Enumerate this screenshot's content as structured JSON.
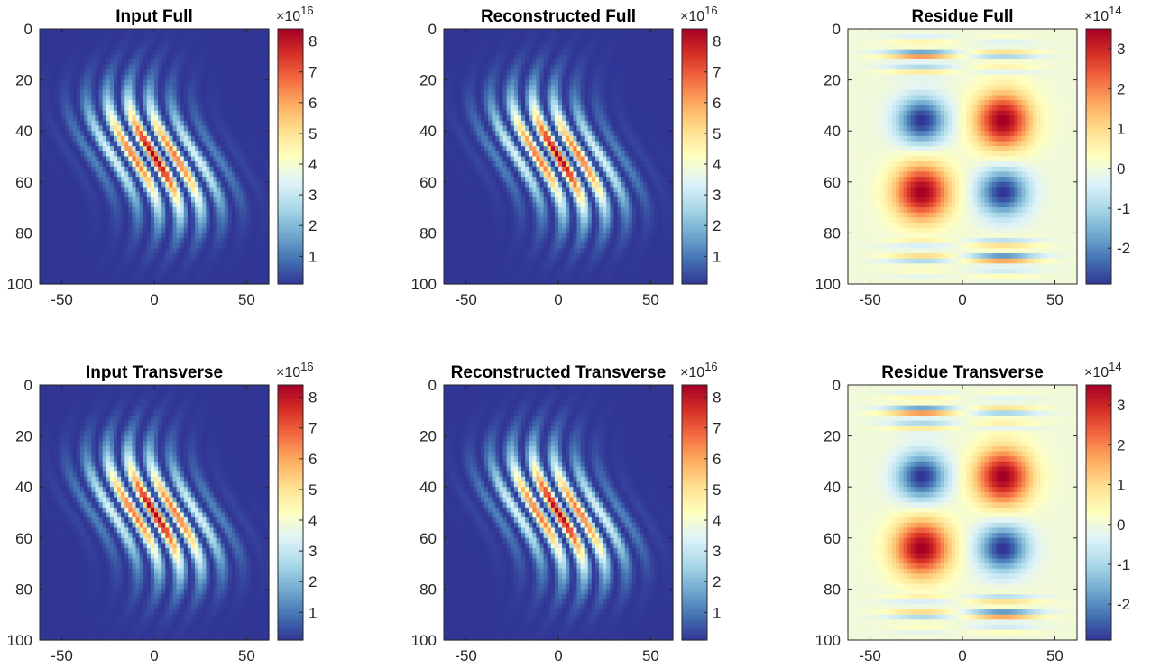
{
  "figure": {
    "background": "#ffffff"
  },
  "colormap": [
    "#313695",
    "#4575b4",
    "#74add1",
    "#abd9e9",
    "#e0f3f8",
    "#ffffbf",
    "#fee090",
    "#fdae61",
    "#f46d43",
    "#d73027",
    "#a50026"
  ],
  "chart_data": [
    {
      "type": "heatmap",
      "title": "Input Full",
      "kind": "wave",
      "xlim": [
        -62,
        62
      ],
      "ylim": [
        0,
        100
      ],
      "y_reversed": true,
      "xticks": [
        "-50",
        "0",
        "50"
      ],
      "xtick_values": [
        -50,
        0,
        50
      ],
      "yticks": [
        "0",
        "20",
        "40",
        "60",
        "80",
        "100"
      ],
      "ytick_values": [
        0,
        20,
        40,
        60,
        80,
        100
      ],
      "clim": [
        0.1,
        8.4
      ],
      "colorbar_ticks": [
        "1",
        "2",
        "3",
        "4",
        "5",
        "6",
        "7",
        "8"
      ],
      "colorbar_tick_values": [
        1,
        2,
        3,
        4,
        5,
        6,
        7,
        8
      ],
      "colorbar_multiplier": "×10",
      "colorbar_exponent": "16"
    },
    {
      "type": "heatmap",
      "title": "Reconstructed Full",
      "kind": "wave",
      "xlim": [
        -62,
        62
      ],
      "ylim": [
        0,
        100
      ],
      "y_reversed": true,
      "xticks": [
        "-50",
        "0",
        "50"
      ],
      "xtick_values": [
        -50,
        0,
        50
      ],
      "yticks": [
        "0",
        "20",
        "40",
        "60",
        "80",
        "100"
      ],
      "ytick_values": [
        0,
        20,
        40,
        60,
        80,
        100
      ],
      "clim": [
        0.1,
        8.4
      ],
      "colorbar_ticks": [
        "1",
        "2",
        "3",
        "4",
        "5",
        "6",
        "7",
        "8"
      ],
      "colorbar_tick_values": [
        1,
        2,
        3,
        4,
        5,
        6,
        7,
        8
      ],
      "colorbar_multiplier": "×10",
      "colorbar_exponent": "16"
    },
    {
      "type": "heatmap",
      "title": "Residue Full",
      "kind": "residue",
      "xlim": [
        -62,
        62
      ],
      "ylim": [
        0,
        100
      ],
      "y_reversed": true,
      "xticks": [
        "-50",
        "0",
        "50"
      ],
      "xtick_values": [
        -50,
        0,
        50
      ],
      "yticks": [
        "0",
        "20",
        "40",
        "60",
        "80",
        "100"
      ],
      "ytick_values": [
        0,
        20,
        40,
        60,
        80,
        100
      ],
      "clim": [
        -2.9,
        3.5
      ],
      "colorbar_ticks": [
        "-2",
        "-1",
        "0",
        "1",
        "2",
        "3"
      ],
      "colorbar_tick_values": [
        -2,
        -1,
        0,
        1,
        2,
        3
      ],
      "colorbar_multiplier": "×10",
      "colorbar_exponent": "14"
    },
    {
      "type": "heatmap",
      "title": "Input Transverse",
      "kind": "wave",
      "xlim": [
        -62,
        62
      ],
      "ylim": [
        0,
        100
      ],
      "y_reversed": true,
      "xticks": [
        "-50",
        "0",
        "50"
      ],
      "xtick_values": [
        -50,
        0,
        50
      ],
      "yticks": [
        "0",
        "20",
        "40",
        "60",
        "80",
        "100"
      ],
      "ytick_values": [
        0,
        20,
        40,
        60,
        80,
        100
      ],
      "clim": [
        0.1,
        8.4
      ],
      "colorbar_ticks": [
        "1",
        "2",
        "3",
        "4",
        "5",
        "6",
        "7",
        "8"
      ],
      "colorbar_tick_values": [
        1,
        2,
        3,
        4,
        5,
        6,
        7,
        8
      ],
      "colorbar_multiplier": "×10",
      "colorbar_exponent": "16"
    },
    {
      "type": "heatmap",
      "title": "Reconstructed Transverse",
      "kind": "wave",
      "xlim": [
        -62,
        62
      ],
      "ylim": [
        0,
        100
      ],
      "y_reversed": true,
      "xticks": [
        "-50",
        "0",
        "50"
      ],
      "xtick_values": [
        -50,
        0,
        50
      ],
      "yticks": [
        "0",
        "20",
        "40",
        "60",
        "80",
        "100"
      ],
      "ytick_values": [
        0,
        20,
        40,
        60,
        80,
        100
      ],
      "clim": [
        0.1,
        8.4
      ],
      "colorbar_ticks": [
        "1",
        "2",
        "3",
        "4",
        "5",
        "6",
        "7",
        "8"
      ],
      "colorbar_tick_values": [
        1,
        2,
        3,
        4,
        5,
        6,
        7,
        8
      ],
      "colorbar_multiplier": "×10",
      "colorbar_exponent": "16"
    },
    {
      "type": "heatmap",
      "title": "Residue Transverse",
      "kind": "residue",
      "xlim": [
        -62,
        62
      ],
      "ylim": [
        0,
        100
      ],
      "y_reversed": true,
      "xticks": [
        "-50",
        "0",
        "50"
      ],
      "xtick_values": [
        -50,
        0,
        50
      ],
      "yticks": [
        "0",
        "20",
        "40",
        "60",
        "80",
        "100"
      ],
      "ytick_values": [
        0,
        20,
        40,
        60,
        80,
        100
      ],
      "clim": [
        -2.9,
        3.5
      ],
      "colorbar_ticks": [
        "-2",
        "-1",
        "0",
        "1",
        "2",
        "3"
      ],
      "colorbar_tick_values": [
        -2,
        -1,
        0,
        1,
        2,
        3
      ],
      "colorbar_multiplier": "×10",
      "colorbar_exponent": "14"
    }
  ]
}
